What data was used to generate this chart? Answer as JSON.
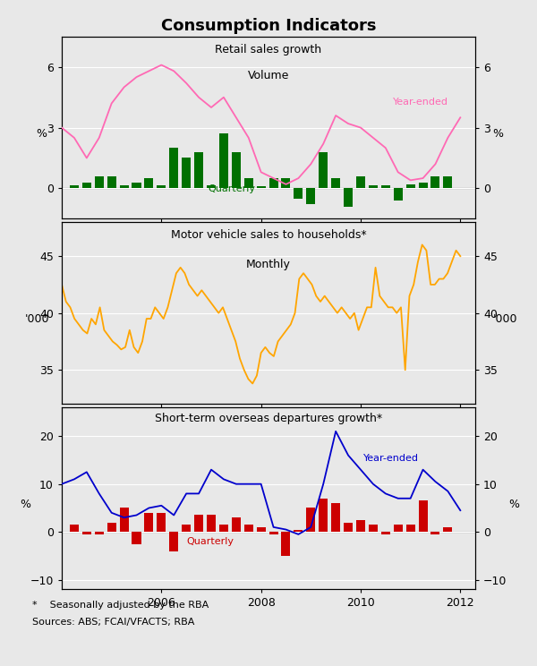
{
  "title": "Consumption Indicators",
  "panel1": {
    "title_line1": "Retail sales growth",
    "title_line2": "Volume",
    "ylabel_left": "%",
    "ylabel_right": "%",
    "ylim": [
      -1.5,
      7.5
    ],
    "yticks": [
      0,
      3,
      6
    ],
    "bar_color": "#007000",
    "line_color": "#FF69B4",
    "bar_label": "Quarterly",
    "line_label": "Year-ended",
    "bar_x": [
      2004.25,
      2004.5,
      2004.75,
      2005.0,
      2005.25,
      2005.5,
      2005.75,
      2006.0,
      2006.25,
      2006.5,
      2006.75,
      2007.0,
      2007.25,
      2007.5,
      2007.75,
      2008.0,
      2008.25,
      2008.5,
      2008.75,
      2009.0,
      2009.25,
      2009.5,
      2009.75,
      2010.0,
      2010.25,
      2010.5,
      2010.75,
      2011.0,
      2011.25,
      2011.5,
      2011.75
    ],
    "bar_vals": [
      0.15,
      0.3,
      0.6,
      0.6,
      0.15,
      0.3,
      0.5,
      0.15,
      2.0,
      1.5,
      1.8,
      0.15,
      2.7,
      1.8,
      0.5,
      0.1,
      0.5,
      0.5,
      -0.5,
      -0.8,
      1.8,
      0.5,
      -0.9,
      0.6,
      0.15,
      0.15,
      -0.6,
      0.2,
      0.3,
      0.6,
      0.6
    ],
    "line_x": [
      2004.0,
      2004.25,
      2004.5,
      2004.75,
      2005.0,
      2005.25,
      2005.5,
      2005.75,
      2006.0,
      2006.25,
      2006.5,
      2006.75,
      2007.0,
      2007.25,
      2007.5,
      2007.75,
      2008.0,
      2008.25,
      2008.5,
      2008.75,
      2009.0,
      2009.25,
      2009.5,
      2009.75,
      2010.0,
      2010.25,
      2010.5,
      2010.75,
      2011.0,
      2011.25,
      2011.5,
      2011.75,
      2012.0
    ],
    "line_vals": [
      3.0,
      2.5,
      1.5,
      2.5,
      4.2,
      5.0,
      5.5,
      5.8,
      6.1,
      5.8,
      5.2,
      4.5,
      4.0,
      4.5,
      3.5,
      2.5,
      0.8,
      0.5,
      0.2,
      0.5,
      1.2,
      2.2,
      3.6,
      3.2,
      3.0,
      2.5,
      2.0,
      0.8,
      0.4,
      0.5,
      1.2,
      2.5,
      3.5
    ]
  },
  "panel2": {
    "title_line1": "Motor vehicle sales to households*",
    "title_line2": "Monthly",
    "ylabel_left": "'000",
    "ylabel_right": "'000",
    "ylim": [
      32,
      48
    ],
    "yticks": [
      35,
      40,
      45
    ],
    "line_color": "#FFA500",
    "line_vals": [
      42.5,
      41.0,
      40.5,
      39.5,
      39.0,
      38.5,
      38.2,
      39.5,
      39.0,
      40.5,
      38.5,
      38.0,
      37.5,
      37.2,
      36.8,
      37.0,
      38.5,
      37.0,
      36.5,
      37.5,
      39.5,
      39.5,
      40.5,
      40.0,
      39.5,
      40.5,
      42.0,
      43.5,
      44.0,
      43.5,
      42.5,
      42.0,
      41.5,
      42.0,
      41.5,
      41.0,
      40.5,
      40.0,
      40.5,
      39.5,
      38.5,
      37.5,
      36.0,
      35.0,
      34.2,
      33.8,
      34.5,
      36.5,
      37.0,
      36.5,
      36.2,
      37.5,
      38.0,
      38.5,
      39.0,
      40.0,
      43.0,
      43.5,
      43.0,
      42.5,
      41.5,
      41.0,
      41.5,
      41.0,
      40.5,
      40.0,
      40.5,
      40.0,
      39.5,
      40.0,
      38.5,
      39.5,
      40.5,
      40.5,
      44.0,
      41.5,
      41.0,
      40.5,
      40.5,
      40.0,
      40.5,
      35.0,
      41.5,
      42.5,
      44.5,
      46.0,
      45.5,
      42.5,
      42.5,
      43.0,
      43.0,
      43.5,
      44.5,
      45.5,
      45.0
    ]
  },
  "panel3": {
    "title_line1": "Short-term overseas departures growth*",
    "ylabel_left": "%",
    "ylabel_right": "%",
    "ylim": [
      -12,
      26
    ],
    "yticks": [
      -10,
      0,
      10,
      20
    ],
    "bar_color": "#CC0000",
    "line_color": "#0000CC",
    "bar_label": "Quarterly",
    "line_label": "Year-ended",
    "bar_x": [
      2004.25,
      2004.5,
      2004.75,
      2005.0,
      2005.25,
      2005.5,
      2005.75,
      2006.0,
      2006.25,
      2006.5,
      2006.75,
      2007.0,
      2007.25,
      2007.5,
      2007.75,
      2008.0,
      2008.25,
      2008.5,
      2008.75,
      2009.0,
      2009.25,
      2009.5,
      2009.75,
      2010.0,
      2010.25,
      2010.5,
      2010.75,
      2011.0,
      2011.25,
      2011.5,
      2011.75
    ],
    "bar_vals": [
      1.5,
      -0.5,
      -0.5,
      2.0,
      5.0,
      -2.5,
      4.0,
      4.0,
      -4.0,
      1.5,
      3.5,
      3.5,
      1.5,
      3.0,
      1.5,
      1.0,
      -0.5,
      -5.0,
      0.5,
      5.0,
      7.0,
      6.0,
      2.0,
      2.5,
      1.5,
      -0.5,
      1.5,
      1.5,
      6.5,
      -0.5,
      1.0
    ],
    "line_x": [
      2004.0,
      2004.25,
      2004.5,
      2004.75,
      2005.0,
      2005.25,
      2005.5,
      2005.75,
      2006.0,
      2006.25,
      2006.5,
      2006.75,
      2007.0,
      2007.25,
      2007.5,
      2007.75,
      2008.0,
      2008.25,
      2008.5,
      2008.75,
      2009.0,
      2009.25,
      2009.5,
      2009.75,
      2010.0,
      2010.25,
      2010.5,
      2010.75,
      2011.0,
      2011.25,
      2011.5,
      2011.75,
      2012.0
    ],
    "line_vals": [
      10.0,
      11.0,
      12.5,
      8.0,
      4.0,
      3.0,
      3.5,
      5.0,
      5.5,
      3.5,
      8.0,
      8.0,
      13.0,
      11.0,
      10.0,
      10.0,
      10.0,
      1.0,
      0.5,
      -0.5,
      1.0,
      10.0,
      21.0,
      16.0,
      13.0,
      10.0,
      8.0,
      7.0,
      7.0,
      13.0,
      10.5,
      8.5,
      4.5
    ]
  },
  "xlim": [
    2004.0,
    2012.3
  ],
  "xticks": [
    2006,
    2008,
    2010,
    2012
  ],
  "xticklabels": [
    "2006",
    "2008",
    "2010",
    "2012"
  ],
  "footnote1": "*    Seasonally adjusted by the RBA",
  "footnote2": "Sources: ABS; FCAI/VFACTS; RBA",
  "bg_color": "#e8e8e8",
  "grid_color": "#ffffff"
}
